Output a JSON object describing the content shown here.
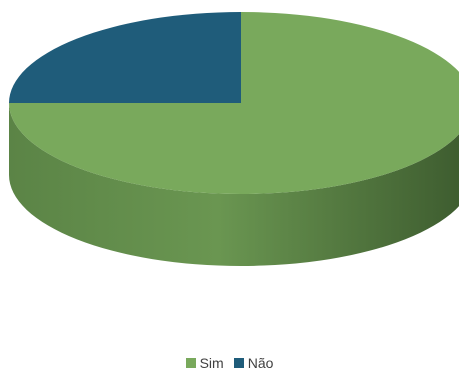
{
  "chart_data": {
    "type": "pie",
    "title": "",
    "style": "3d",
    "categories": [
      "Sim",
      "Não"
    ],
    "values": [
      75,
      25
    ],
    "series": [
      {
        "values": [
          75,
          25
        ]
      }
    ],
    "colors": [
      "#79a95c",
      "#1f5c7a"
    ],
    "legend": {
      "placement": "bottom",
      "entries": [
        "Sim",
        "Não"
      ]
    }
  }
}
